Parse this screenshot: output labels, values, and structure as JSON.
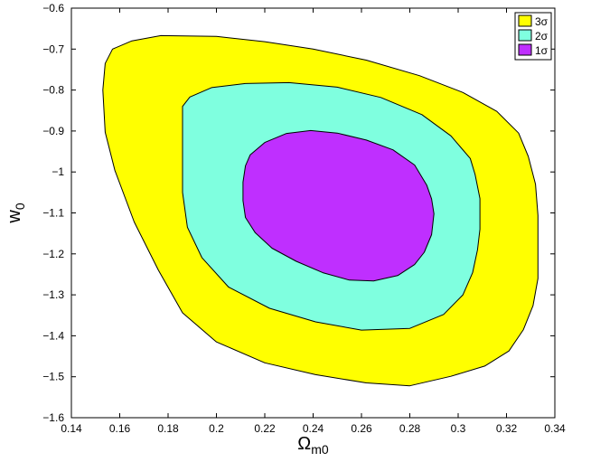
{
  "chart_data": {
    "type": "contour",
    "xlabel": {
      "main": "Ω",
      "sub": "m0"
    },
    "ylabel": {
      "main": "w",
      "sub": "0"
    },
    "xlim": [
      0.14,
      0.34
    ],
    "ylim": [
      -1.6,
      -0.6
    ],
    "xticks": [
      0.14,
      0.16,
      0.18,
      0.2,
      0.22,
      0.24,
      0.26,
      0.28,
      0.3,
      0.32,
      0.34
    ],
    "yticks": [
      -1.6,
      -1.5,
      -1.4,
      -1.3,
      -1.2,
      -1.1,
      -1.0,
      -0.9,
      -0.8,
      -0.7,
      -0.6
    ],
    "xtick_labels": [
      "0.14",
      "0.16",
      "0.18",
      "0.2",
      "0.22",
      "0.24",
      "0.26",
      "0.28",
      "0.3",
      "0.32",
      "0.34"
    ],
    "ytick_labels": [
      "−1.6",
      "−1.5",
      "−1.4",
      "−1.3",
      "−1.2",
      "−1.1",
      "−1",
      "−0.9",
      "−0.8",
      "−0.7",
      "−0.6"
    ],
    "grid": false,
    "legend_position": "top-right",
    "series": [
      {
        "name": "3σ",
        "color": "#ffff00",
        "points": [
          [
            0.154,
            -0.735
          ],
          [
            0.157,
            -0.7
          ],
          [
            0.165,
            -0.68
          ],
          [
            0.177,
            -0.667
          ],
          [
            0.2,
            -0.669
          ],
          [
            0.22,
            -0.682
          ],
          [
            0.24,
            -0.7
          ],
          [
            0.262,
            -0.727
          ],
          [
            0.284,
            -0.765
          ],
          [
            0.302,
            -0.806
          ],
          [
            0.316,
            -0.852
          ],
          [
            0.325,
            -0.905
          ],
          [
            0.329,
            -0.962
          ],
          [
            0.332,
            -1.03
          ],
          [
            0.333,
            -1.106
          ],
          [
            0.333,
            -1.19
          ],
          [
            0.333,
            -1.26
          ],
          [
            0.331,
            -1.326
          ],
          [
            0.327,
            -1.385
          ],
          [
            0.321,
            -1.437
          ],
          [
            0.311,
            -1.474
          ],
          [
            0.297,
            -1.499
          ],
          [
            0.28,
            -1.522
          ],
          [
            0.262,
            -1.515
          ],
          [
            0.241,
            -1.495
          ],
          [
            0.22,
            -1.466
          ],
          [
            0.2,
            -1.415
          ],
          [
            0.186,
            -1.344
          ],
          [
            0.176,
            -1.24
          ],
          [
            0.166,
            -1.122
          ],
          [
            0.158,
            -0.996
          ],
          [
            0.154,
            -0.903
          ],
          [
            0.153,
            -0.8
          ]
        ]
      },
      {
        "name": "2σ",
        "color": "#7fffdf",
        "points": [
          [
            0.189,
            -0.817
          ],
          [
            0.198,
            -0.794
          ],
          [
            0.212,
            -0.784
          ],
          [
            0.23,
            -0.782
          ],
          [
            0.25,
            -0.793
          ],
          [
            0.268,
            -0.818
          ],
          [
            0.285,
            -0.86
          ],
          [
            0.297,
            -0.912
          ],
          [
            0.305,
            -0.967
          ],
          [
            0.307,
            -1.006
          ],
          [
            0.309,
            -1.065
          ],
          [
            0.309,
            -1.14
          ],
          [
            0.308,
            -1.19
          ],
          [
            0.306,
            -1.246
          ],
          [
            0.302,
            -1.3
          ],
          [
            0.294,
            -1.348
          ],
          [
            0.28,
            -1.382
          ],
          [
            0.26,
            -1.386
          ],
          [
            0.241,
            -1.366
          ],
          [
            0.222,
            -1.333
          ],
          [
            0.205,
            -1.281
          ],
          [
            0.194,
            -1.209
          ],
          [
            0.188,
            -1.135
          ],
          [
            0.186,
            -1.05
          ],
          [
            0.186,
            -0.952
          ],
          [
            0.186,
            -0.88
          ],
          [
            0.186,
            -0.84
          ]
        ]
      },
      {
        "name": "1σ",
        "color": "#bf2fff",
        "points": [
          [
            0.214,
            -0.958
          ],
          [
            0.22,
            -0.928
          ],
          [
            0.229,
            -0.906
          ],
          [
            0.239,
            -0.899
          ],
          [
            0.25,
            -0.905
          ],
          [
            0.262,
            -0.922
          ],
          [
            0.273,
            -0.946
          ],
          [
            0.282,
            -0.983
          ],
          [
            0.287,
            -1.032
          ],
          [
            0.289,
            -1.066
          ],
          [
            0.29,
            -1.102
          ],
          [
            0.289,
            -1.153
          ],
          [
            0.286,
            -1.196
          ],
          [
            0.282,
            -1.226
          ],
          [
            0.275,
            -1.253
          ],
          [
            0.265,
            -1.266
          ],
          [
            0.255,
            -1.264
          ],
          [
            0.244,
            -1.246
          ],
          [
            0.233,
            -1.218
          ],
          [
            0.223,
            -1.186
          ],
          [
            0.216,
            -1.148
          ],
          [
            0.212,
            -1.111
          ],
          [
            0.211,
            -1.07
          ],
          [
            0.211,
            -1.025
          ],
          [
            0.212,
            -0.985
          ]
        ]
      }
    ],
    "legend_order": [
      "3σ",
      "2σ",
      "1σ"
    ]
  }
}
